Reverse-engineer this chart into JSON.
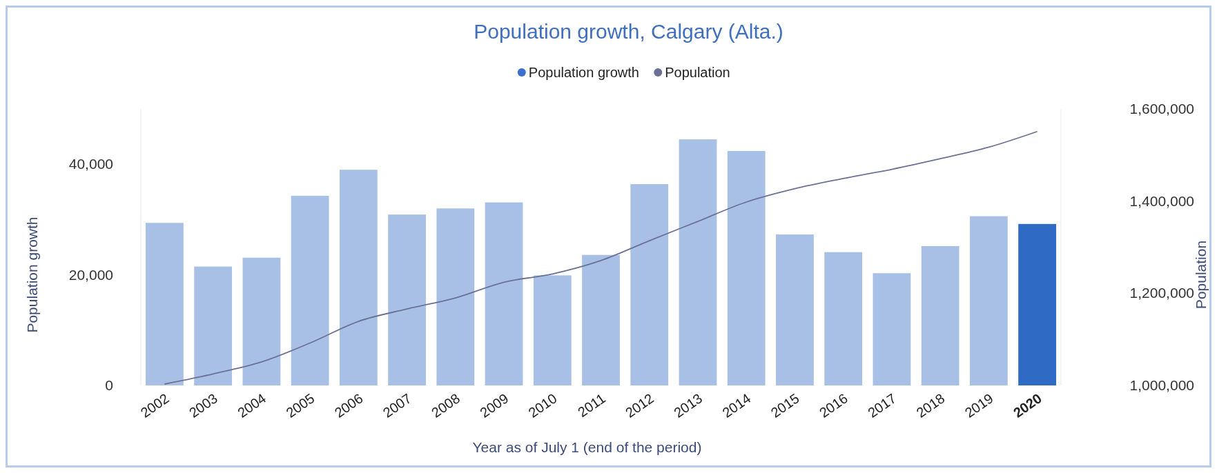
{
  "chart_data": {
    "type": "bar",
    "title": "Population growth, Calgary (Alta.)",
    "xlabel": "Year as of July 1 (end of the period)",
    "ylabel": "Population growth",
    "y2label": "Population",
    "legend": "top",
    "grid": false,
    "categories": [
      "2002",
      "2003",
      "2004",
      "2005",
      "2006",
      "2007",
      "2008",
      "2009",
      "2010",
      "2011",
      "2012",
      "2013",
      "2014",
      "2015",
      "2016",
      "2017",
      "2018",
      "2019",
      "2020"
    ],
    "ylim": [
      0,
      50000
    ],
    "yticks": [
      {
        "value": 0,
        "label": "0"
      },
      {
        "value": 20000,
        "label": "20,000"
      },
      {
        "value": 40000,
        "label": "40,000"
      }
    ],
    "y2lim": [
      1000000,
      1600000
    ],
    "y2ticks": [
      {
        "value": 1000000,
        "label": "1,000,000"
      },
      {
        "value": 1200000,
        "label": "1,200,000"
      },
      {
        "value": 1400000,
        "label": "1,400,000"
      },
      {
        "value": 1600000,
        "label": "1,600,000"
      }
    ],
    "series": [
      {
        "name": "Population growth",
        "color": "#3a6fd0",
        "colors": [
          "#a9c0e6",
          "#a9c0e6",
          "#a9c0e6",
          "#a9c0e6",
          "#a9c0e6",
          "#a9c0e6",
          "#a9c0e6",
          "#a9c0e6",
          "#a9c0e6",
          "#a9c0e6",
          "#a9c0e6",
          "#a9c0e6",
          "#a9c0e6",
          "#a9c0e6",
          "#a9c0e6",
          "#a9c0e6",
          "#a9c0e6",
          "#a9c0e6",
          "#2f6bc4"
        ],
        "values": [
          29400,
          21500,
          23100,
          34300,
          39000,
          30900,
          32000,
          33100,
          19900,
          23600,
          36400,
          44500,
          42400,
          27300,
          24100,
          20300,
          25200,
          30600,
          29200
        ]
      },
      {
        "name": "Population",
        "type": "line",
        "axis": "y2",
        "color": "#6b7194",
        "values": [
          1003000,
          1025000,
          1051000,
          1092000,
          1139000,
          1166000,
          1190000,
          1224000,
          1242000,
          1271000,
          1314000,
          1356000,
          1398000,
          1427000,
          1449000,
          1469000,
          1492000,
          1517000,
          1551000
        ]
      }
    ]
  }
}
